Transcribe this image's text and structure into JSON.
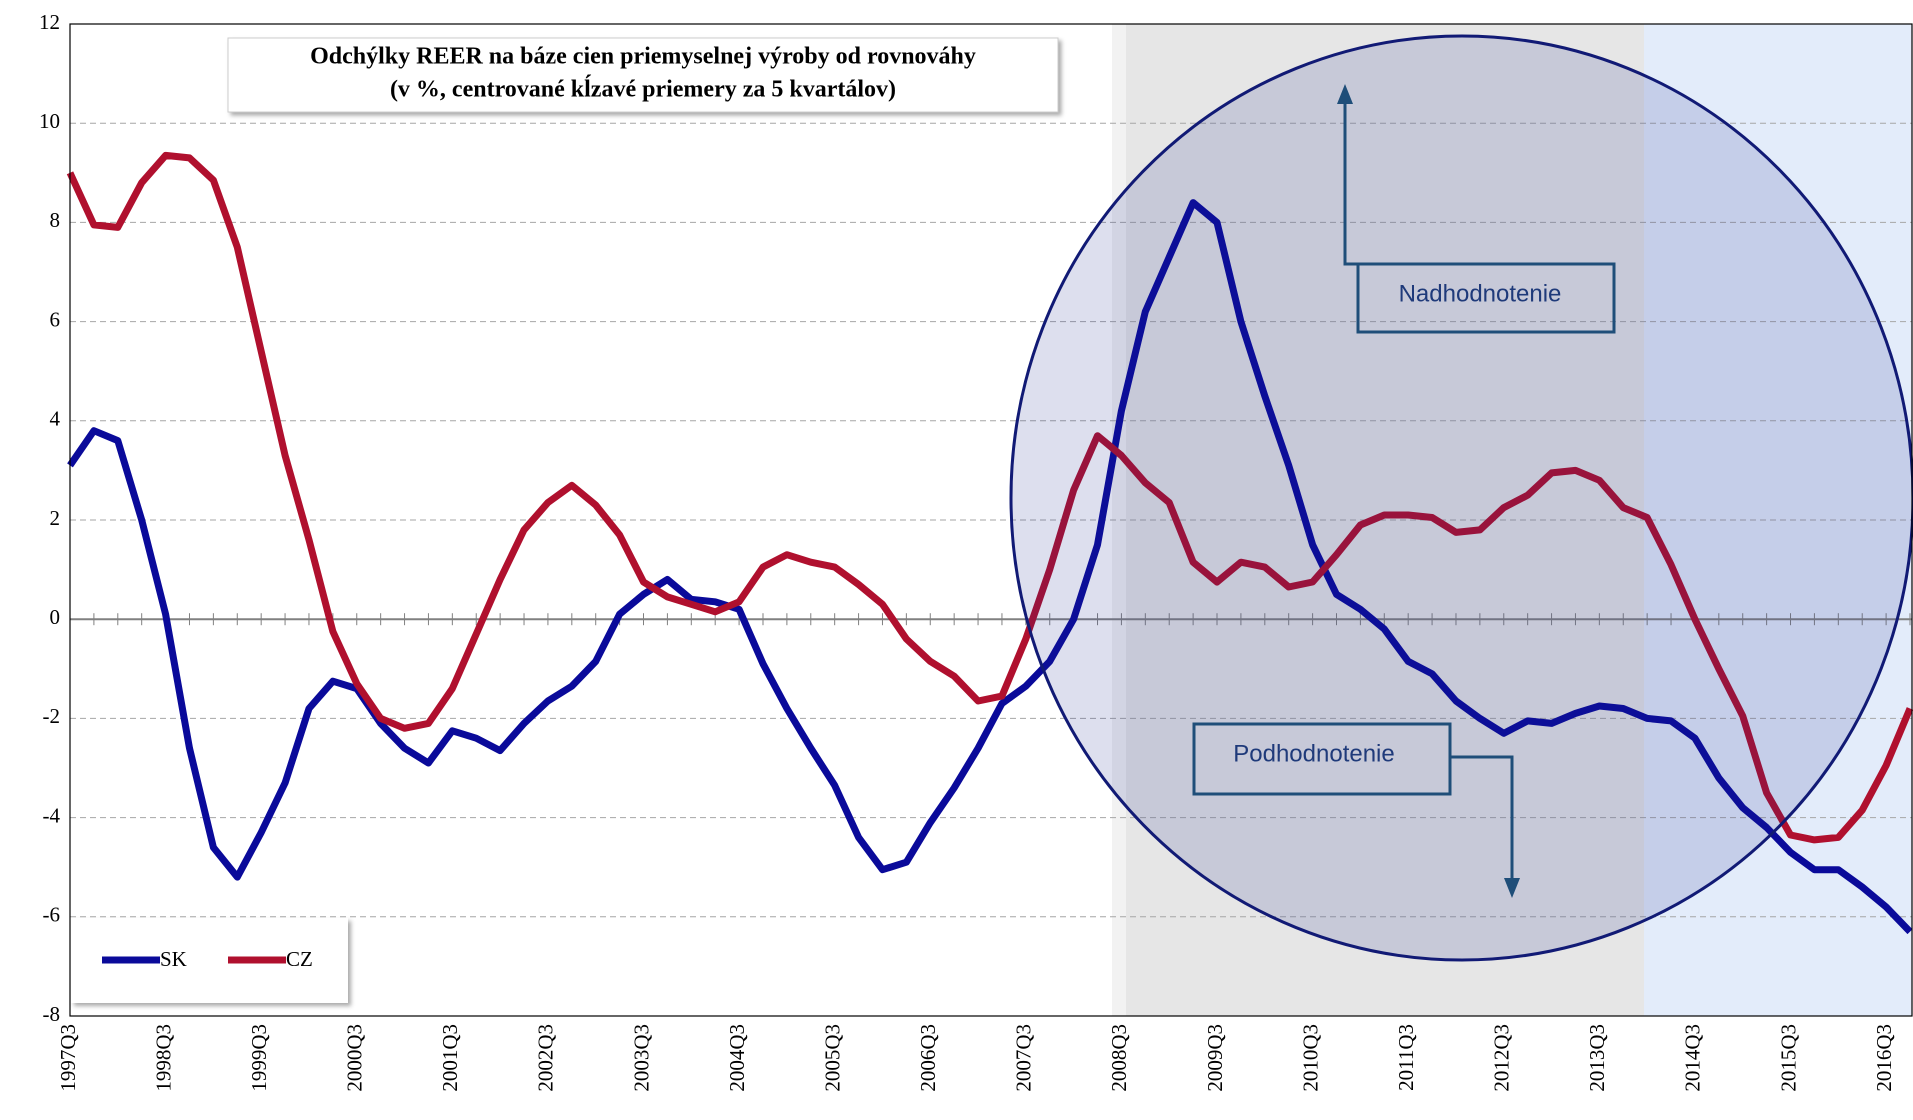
{
  "chart_data": {
    "type": "line",
    "title": "Odchýlky REER na báze cien priemyselnej výroby od rovnováhy",
    "subtitle": "(v %, centrované kĺzavé priemery za 5 kvartálov)",
    "categories": [
      "1997Q3",
      null,
      null,
      null,
      "1998Q3",
      null,
      null,
      null,
      "1999Q3",
      null,
      null,
      null,
      "2000Q3",
      null,
      null,
      null,
      "2001Q3",
      null,
      null,
      null,
      "2002Q3",
      null,
      null,
      null,
      "2003Q3",
      null,
      null,
      null,
      "2004Q3",
      null,
      null,
      null,
      "2005Q3",
      null,
      null,
      null,
      "2006Q3",
      null,
      null,
      null,
      "2007Q3",
      null,
      null,
      null,
      "2008Q3",
      null,
      null,
      null,
      "2009Q3",
      null,
      null,
      null,
      "2010Q3",
      null,
      null,
      null,
      "2011Q3",
      null,
      null,
      null,
      "2012Q3",
      null,
      null,
      null,
      "2013Q3",
      null,
      null,
      null,
      "2014Q3",
      null,
      null,
      null,
      "2015Q3",
      null,
      null,
      null,
      "2016Q3",
      null
    ],
    "series": [
      {
        "name": "SK",
        "color": "#0a0a9a",
        "values": [
          3.1,
          3.8,
          3.6,
          2.0,
          0.1,
          -2.6,
          -4.6,
          -5.2,
          -4.3,
          -3.3,
          -1.8,
          -1.25,
          -1.4,
          -2.1,
          -2.6,
          -2.9,
          -2.25,
          -2.4,
          -2.65,
          -2.1,
          -1.65,
          -1.35,
          -0.85,
          0.1,
          0.5,
          0.8,
          0.4,
          0.35,
          0.2,
          -0.9,
          -1.8,
          -2.6,
          -3.35,
          -4.4,
          -5.05,
          -4.9,
          -4.1,
          -3.4,
          -2.6,
          -1.7,
          -1.35,
          -0.85,
          0.0,
          1.5,
          4.2,
          6.2,
          7.3,
          8.4,
          8.0,
          6.0,
          4.5,
          3.1,
          1.5,
          0.5,
          0.2,
          -0.2,
          -0.85,
          -1.1,
          -1.65,
          -2.0,
          -2.3,
          -2.05,
          -2.1,
          -1.9,
          -1.75,
          -1.8,
          -2.0,
          -2.05,
          -2.4,
          -3.2,
          -3.8,
          -4.2,
          -4.7,
          -5.05,
          -5.05,
          -5.4,
          -5.8,
          -6.3
        ]
      },
      {
        "name": "CZ",
        "color": "#b0102e",
        "values": [
          9.0,
          7.95,
          7.9,
          8.8,
          9.35,
          9.3,
          8.85,
          7.5,
          5.4,
          3.3,
          1.6,
          -0.25,
          -1.3,
          -2.0,
          -2.2,
          -2.1,
          -1.4,
          -0.3,
          0.8,
          1.8,
          2.35,
          2.7,
          2.3,
          1.7,
          0.75,
          0.45,
          0.3,
          0.15,
          0.35,
          1.05,
          1.3,
          1.15,
          1.05,
          0.7,
          0.3,
          -0.4,
          -0.85,
          -1.15,
          -1.65,
          -1.55,
          -0.4,
          1.0,
          2.6,
          3.7,
          3.3,
          2.75,
          2.35,
          1.15,
          0.75,
          1.15,
          1.05,
          0.65,
          0.75,
          1.3,
          1.9,
          2.1,
          2.1,
          2.05,
          1.75,
          1.8,
          2.25,
          2.5,
          2.95,
          3.0,
          2.8,
          2.25,
          2.05,
          1.1,
          0.0,
          -1.0,
          -1.95,
          -3.5,
          -4.35,
          -4.45,
          -4.4,
          -3.85,
          -2.95,
          -1.8
        ]
      }
    ],
    "ylim": [
      -8,
      12
    ],
    "yticks": [
      -8,
      -6,
      -4,
      -2,
      0,
      2,
      4,
      6,
      8,
      10,
      12
    ],
    "grid": true,
    "annotations": [
      "Nadhodnotenie",
      "Podhodnotenie"
    ]
  }
}
